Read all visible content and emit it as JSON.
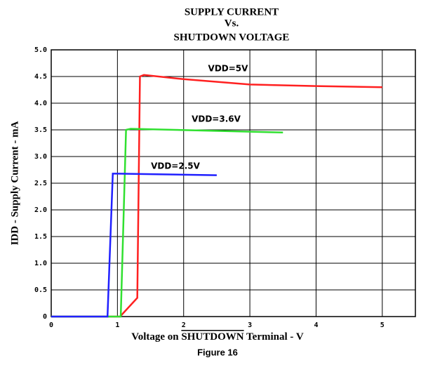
{
  "chart_data": {
    "type": "line",
    "title": [
      "SUPPLY CURRENT",
      "Vs.",
      "SHUTDOWN VOLTAGE"
    ],
    "xlabel": [
      "Voltage on ",
      "SHUTDOWN",
      " Terminal - V"
    ],
    "ylabel": "IDD - Supply Current - mA",
    "caption": "Figure 16",
    "xlim": [
      0,
      5.5
    ],
    "xticks": [
      0,
      1,
      2,
      3,
      4,
      5
    ],
    "ylim": [
      0,
      5
    ],
    "yticks": [
      0,
      0.5,
      {
        "value": 1,
        "label": "1.0"
      },
      1.5,
      {
        "value": 2,
        "label": "2.0"
      },
      2.5,
      {
        "value": 3,
        "label": "3.0"
      },
      3.5,
      {
        "value": 4,
        "label": "4.0"
      },
      4.5,
      {
        "value": 5,
        "label": "5.0"
      }
    ],
    "grid": true,
    "series": [
      {
        "name": "VDD=5V",
        "color": "#ff2020",
        "x": [
          0,
          1.04,
          1.3,
          1.34,
          1.4,
          2,
          3,
          4,
          5
        ],
        "values": [
          0,
          0,
          0.35,
          4.5,
          4.53,
          4.45,
          4.35,
          4.32,
          4.3
        ]
      },
      {
        "name": "VDD=3.6V",
        "color": "#30e030",
        "x": [
          0,
          1.05,
          1.13,
          1.2,
          3.5
        ],
        "values": [
          0,
          0,
          3.5,
          3.52,
          3.45
        ]
      },
      {
        "name": "VDD=2.5V",
        "color": "#2020ff",
        "x": [
          0,
          0.85,
          0.93,
          1.0,
          2.5
        ],
        "values": [
          0,
          0,
          2.68,
          2.68,
          2.65
        ]
      }
    ]
  }
}
